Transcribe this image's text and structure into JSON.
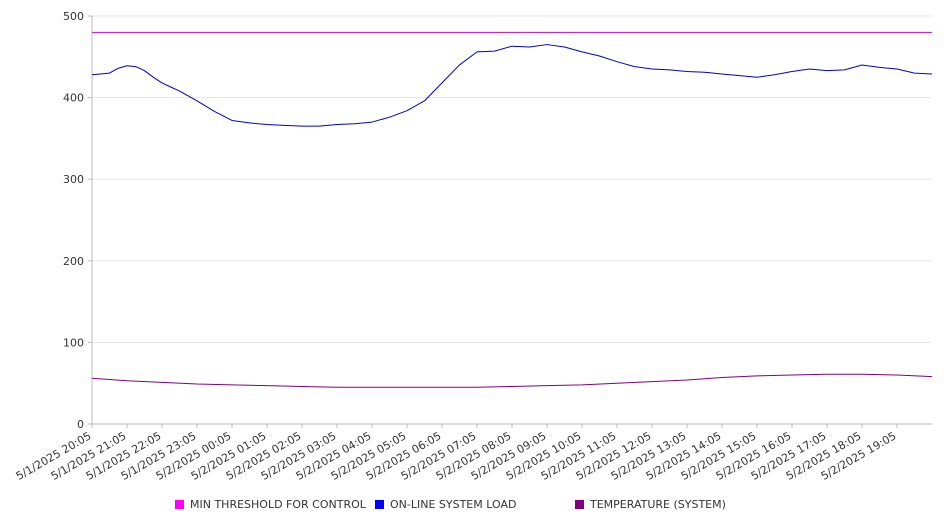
{
  "chart_data": {
    "type": "line",
    "title": "",
    "xlabel": "",
    "ylabel": "",
    "ylim": [
      0,
      500
    ],
    "yticks": [
      "0",
      "100",
      "200",
      "300",
      "400",
      "500"
    ],
    "x_ticks": [
      "5/1/2025 20:05",
      "5/1/2025 21:05",
      "5/1/2025 22:05",
      "5/1/2025 23:05",
      "5/2/2025 00:05",
      "5/2/2025 01:05",
      "5/2/2025 02:05",
      "5/2/2025 03:05",
      "5/2/2025 04:05",
      "5/2/2025 05:05",
      "5/2/2025 06:05",
      "5/2/2025 07:05",
      "5/2/2025 08:05",
      "5/2/2025 09:05",
      "5/2/2025 10:05",
      "5/2/2025 11:05",
      "5/2/2025 12:05",
      "5/2/2025 13:05",
      "5/2/2025 14:05",
      "5/2/2025 15:05",
      "5/2/2025 16:05",
      "5/2/2025 17:05",
      "5/2/2025 18:05",
      "5/2/2025 19:05"
    ],
    "grid": true,
    "legend_position": "bottom",
    "series": [
      {
        "name": "MIN THRESHOLD FOR CONTROL",
        "color": "#cc00cc",
        "x": [
          0,
          24
        ],
        "values": [
          480,
          480
        ]
      },
      {
        "name": "ON-LINE SYSTEM LOAD",
        "color": "#0000cc",
        "x": [
          0,
          0.5,
          0.75,
          1,
          1.25,
          1.5,
          1.75,
          2,
          2.25,
          2.5,
          3,
          3.5,
          4,
          4.5,
          5,
          5.5,
          6,
          6.5,
          7,
          7.5,
          8,
          8.5,
          9,
          9.5,
          10,
          10.5,
          11,
          11.5,
          12,
          12.5,
          13,
          13.5,
          14,
          14.5,
          15,
          15.5,
          16,
          16.5,
          17,
          17.5,
          18,
          18.5,
          19,
          19.5,
          20,
          20.5,
          21,
          21.5,
          22,
          22.5,
          23,
          23.5,
          24
        ],
        "values": [
          428,
          430,
          436,
          439,
          438,
          433,
          425,
          418,
          413,
          408,
          396,
          383,
          372,
          369,
          367,
          366,
          365,
          365,
          367,
          368,
          370,
          376,
          384,
          396,
          418,
          440,
          456,
          457,
          463,
          462,
          465,
          462,
          456,
          451,
          444,
          438,
          435,
          434,
          432,
          431,
          429,
          427,
          425,
          428,
          432,
          435,
          433,
          434,
          440,
          437,
          435,
          430,
          429
        ]
      },
      {
        "name": "TEMPERATURE (SYSTEM)",
        "color": "#800080",
        "x": [
          0,
          1,
          2,
          3,
          4,
          5,
          6,
          7,
          8,
          9,
          10,
          11,
          12,
          13,
          14,
          15,
          16,
          17,
          18,
          19,
          20,
          21,
          22,
          23,
          24
        ],
        "values": [
          56,
          53,
          51,
          49,
          48,
          47,
          46,
          45,
          45,
          45,
          45,
          45,
          46,
          47,
          48,
          50,
          52,
          54,
          57,
          59,
          60,
          61,
          61,
          60,
          58
        ]
      }
    ]
  }
}
